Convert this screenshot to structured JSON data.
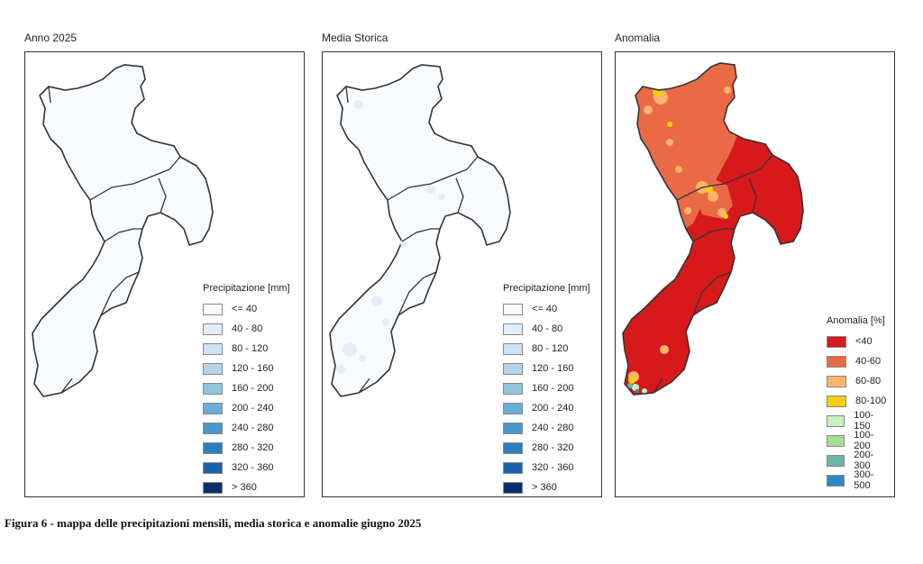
{
  "panels": [
    {
      "title": "Anno 2025"
    },
    {
      "title": "Media Storica"
    },
    {
      "title": "Anomalia"
    }
  ],
  "legend_precip": {
    "title": "Precipitazione [mm]",
    "classes": [
      {
        "label": "<= 40",
        "color": "#f7fbff"
      },
      {
        "label": "40 - 80",
        "color": "#e3eef9"
      },
      {
        "label": "80 - 120",
        "color": "#cfe1f2"
      },
      {
        "label": "120 - 160",
        "color": "#b5d4e9"
      },
      {
        "label": "160 - 200",
        "color": "#93c4de"
      },
      {
        "label": "200 - 240",
        "color": "#6aaed6"
      },
      {
        "label": "240 - 280",
        "color": "#4a98c9"
      },
      {
        "label": "280 - 320",
        "color": "#2e7ebc"
      },
      {
        "label": "320 - 360",
        "color": "#1764ab"
      },
      {
        "label": "> 360",
        "color": "#08306b"
      }
    ]
  },
  "legend_anomaly": {
    "title": "Anomalia [%]",
    "classes": [
      {
        "label": "<40",
        "color": "#d7191c"
      },
      {
        "label": "40-60",
        "color": "#ea6a45"
      },
      {
        "label": "60-80",
        "color": "#fdb56a"
      },
      {
        "label": "80-100",
        "color": "#f5cf0c"
      },
      {
        "label": "100-150",
        "color": "#c9f0c0"
      },
      {
        "label": "100-200",
        "color": "#a8dc9c"
      },
      {
        "label": "200-300",
        "color": "#6cb6a8"
      },
      {
        "label": "300-500",
        "color": "#2f86c3"
      }
    ]
  },
  "caption": "Figura 6 - mappa delle precipitazioni mensili, media storica e anomalie giugno 2025"
}
